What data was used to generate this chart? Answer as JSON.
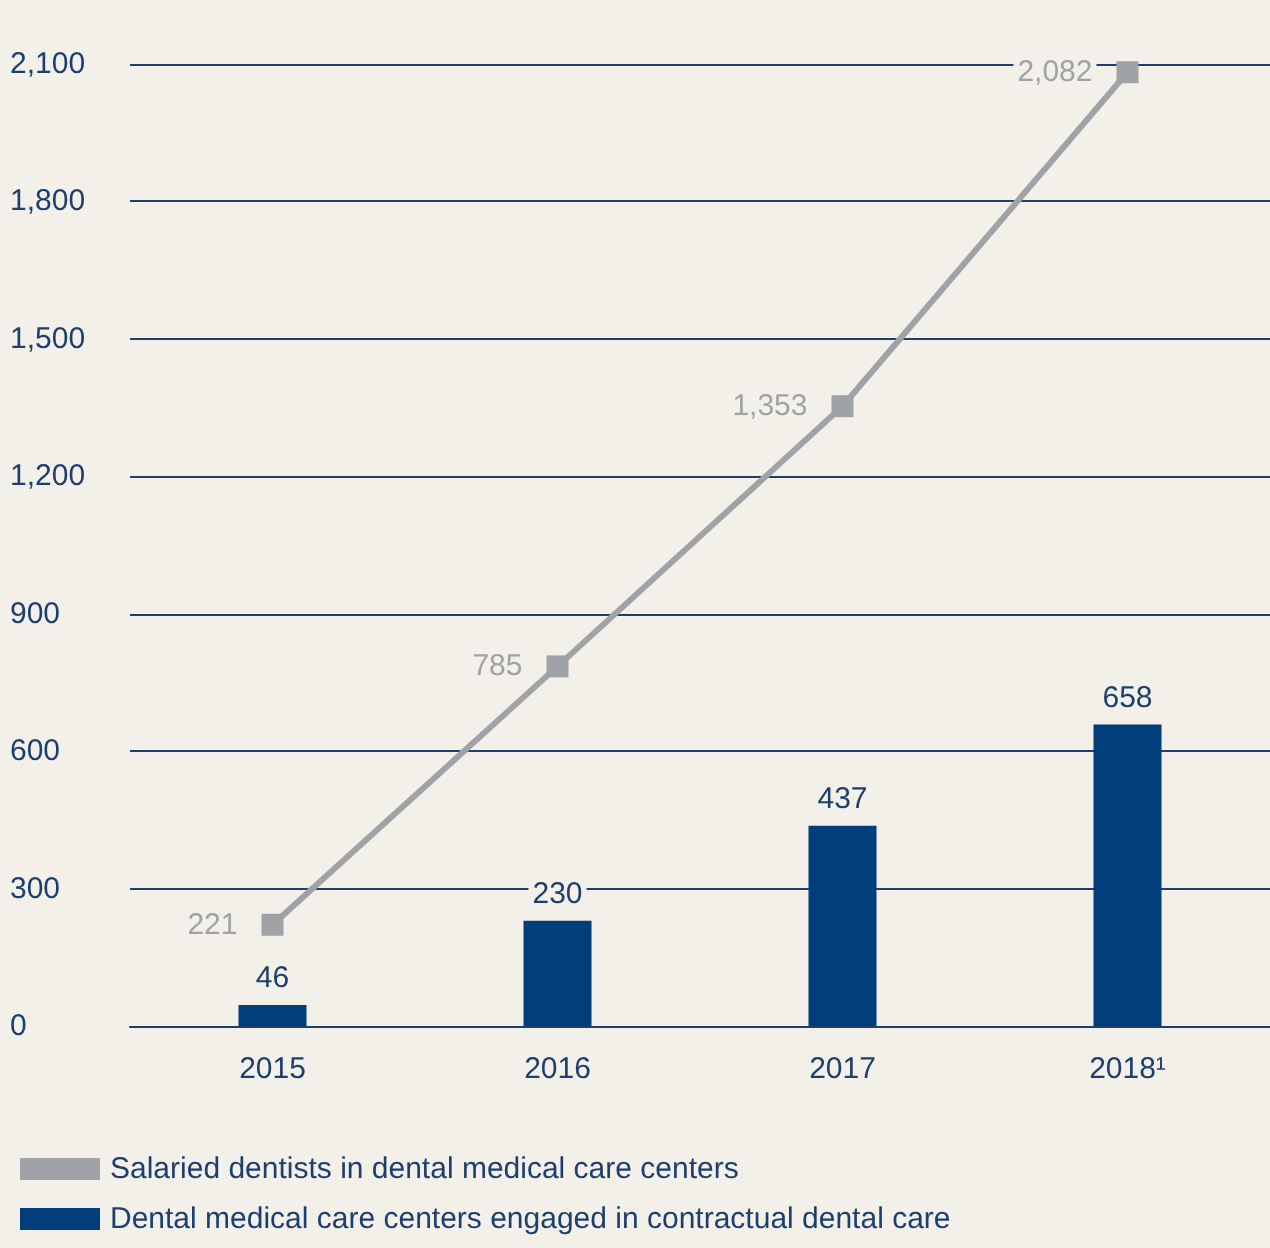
{
  "chart_data": {
    "type": "bar",
    "categories": [
      "2015",
      "2016",
      "2017",
      "2018¹"
    ],
    "series": [
      {
        "name": "Salaried dentists in dental medical care centers",
        "type": "line",
        "color": "#9fa3a7",
        "values": [
          221,
          785,
          1353,
          2082
        ],
        "value_labels": [
          "221",
          "785",
          "1,353",
          "2,082"
        ]
      },
      {
        "name": "Dental medical care centers engaged in contractual dental care",
        "color": "#003f7c",
        "values": [
          46,
          230,
          437,
          658
        ],
        "value_labels": [
          "46",
          "230",
          "437",
          "658"
        ]
      }
    ],
    "ylim": [
      0,
      2100
    ],
    "yticks": [
      0,
      300,
      600,
      900,
      {
        "value": 1200,
        "label": "1,200"
      },
      {
        "value": 1500,
        "label": "1,500"
      },
      {
        "value": 1800,
        "label": "1,800"
      },
      {
        "value": 2100,
        "label": "2,100"
      }
    ],
    "grid": "y",
    "legend": "bottom left",
    "marker": "square"
  }
}
